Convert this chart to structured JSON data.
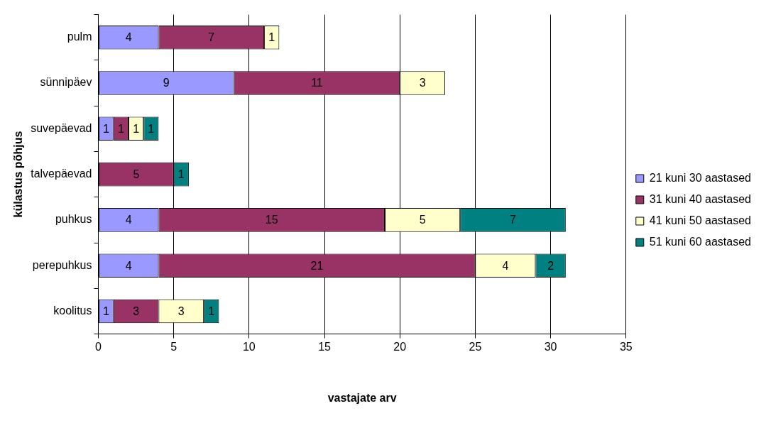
{
  "chart_data": {
    "type": "bar",
    "orientation": "horizontal",
    "stacked": true,
    "xlabel": "vastajate arv",
    "ylabel": "külastus põhjus",
    "categories": [
      "pulm",
      "sünnipäev",
      "suvepäevad",
      "talvepäevad",
      "puhkus",
      "perepuhkus",
      "koolitus"
    ],
    "series": [
      {
        "name": "21 kuni 30 aastased",
        "color": "#9999ff",
        "values": [
          4,
          9,
          1,
          null,
          4,
          4,
          1
        ]
      },
      {
        "name": "31 kuni 40 aastased",
        "color": "#993366",
        "values": [
          7,
          11,
          1,
          5,
          15,
          21,
          3
        ]
      },
      {
        "name": "41 kuni 50 aastased",
        "color": "#ffffcc",
        "values": [
          1,
          3,
          1,
          null,
          5,
          4,
          3
        ]
      },
      {
        "name": "51 kuni 60 aastased",
        "color": "#008080",
        "values": [
          null,
          null,
          1,
          1,
          7,
          2,
          1
        ]
      }
    ],
    "xlim": [
      0,
      35
    ],
    "xticks": [
      0,
      5,
      10,
      15,
      20,
      25,
      30,
      35
    ],
    "grid": "x",
    "legend": "right",
    "data_labels": true
  }
}
